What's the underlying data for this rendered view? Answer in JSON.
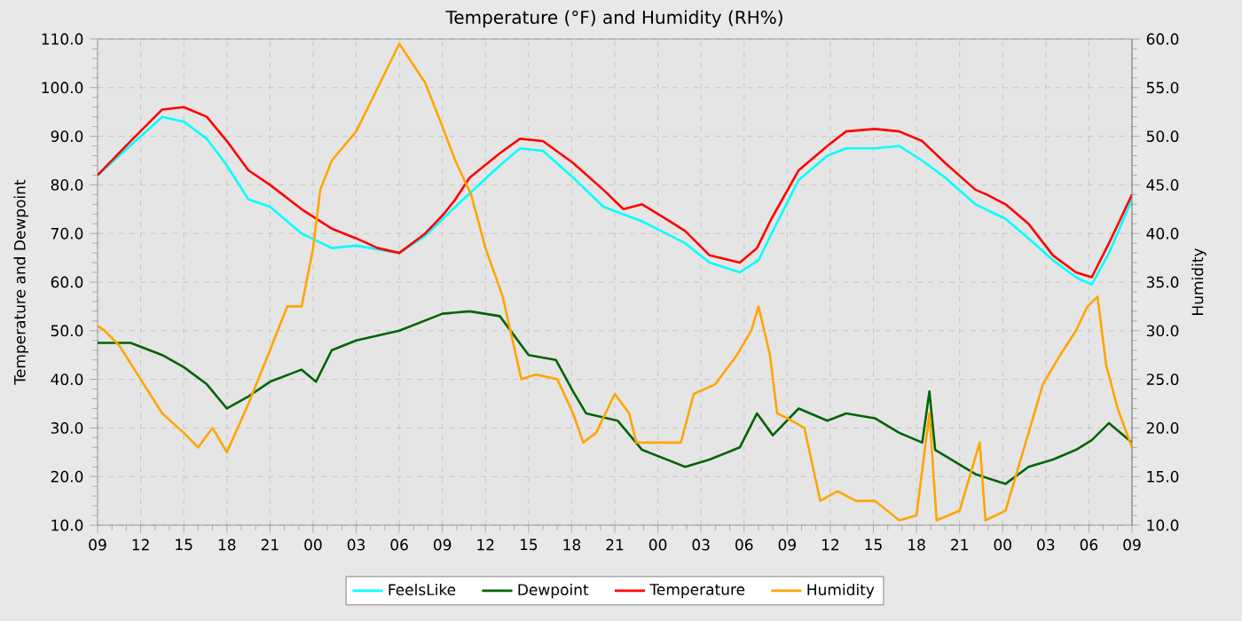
{
  "chart_data": {
    "type": "line",
    "title": "Temperature (°F) and Humidity (RH%)",
    "ylabel": "Temperature and Dewpoint",
    "y2label": "Humidity",
    "xlim": [
      9,
      81
    ],
    "xticks": [
      {
        "value": 9,
        "label": "09"
      },
      12,
      15,
      18,
      21,
      {
        "value": 24,
        "label": "00"
      },
      {
        "value": 27,
        "label": "03"
      },
      {
        "value": 30,
        "label": "06"
      },
      {
        "value": 33,
        "label": "09"
      },
      {
        "value": 36,
        "label": "12"
      },
      {
        "value": 39,
        "label": "15"
      },
      {
        "value": 42,
        "label": "18"
      },
      {
        "value": 45,
        "label": "21"
      },
      {
        "value": 48,
        "label": "00"
      },
      {
        "value": 51,
        "label": "03"
      },
      {
        "value": 54,
        "label": "06"
      },
      {
        "value": 57,
        "label": "09"
      },
      {
        "value": 60,
        "label": "12"
      },
      {
        "value": 63,
        "label": "15"
      },
      {
        "value": 66,
        "label": "18"
      },
      {
        "value": 69,
        "label": "21"
      },
      {
        "value": 72,
        "label": "00"
      },
      {
        "value": 75,
        "label": "03"
      },
      {
        "value": 78,
        "label": "06"
      },
      {
        "value": 81,
        "label": "09"
      }
    ],
    "ylim": [
      10,
      110
    ],
    "yticks": [
      {
        "value": 10,
        "label": "10.0"
      },
      {
        "value": 20,
        "label": "20.0"
      },
      {
        "value": 30,
        "label": "30.0"
      },
      {
        "value": 40,
        "label": "40.0"
      },
      {
        "value": 50,
        "label": "50.0"
      },
      {
        "value": 60,
        "label": "60.0"
      },
      {
        "value": 70,
        "label": "70.0"
      },
      {
        "value": 80,
        "label": "80.0"
      },
      {
        "value": 90,
        "label": "90.0"
      },
      {
        "value": 100,
        "label": "100.0"
      },
      {
        "value": 110,
        "label": "110.0"
      }
    ],
    "y2lim": [
      10,
      60
    ],
    "y2ticks": [
      {
        "value": 10,
        "label": "10.0"
      },
      {
        "value": 15,
        "label": "15.0"
      },
      {
        "value": 20,
        "label": "20.0"
      },
      {
        "value": 25,
        "label": "25.0"
      },
      {
        "value": 30,
        "label": "30.0"
      },
      {
        "value": 35,
        "label": "35.0"
      },
      {
        "value": 40,
        "label": "40.0"
      },
      {
        "value": 45,
        "label": "45.0"
      },
      {
        "value": 50,
        "label": "50.0"
      },
      {
        "value": 55,
        "label": "55.0"
      },
      {
        "value": 60,
        "label": "60.0"
      }
    ],
    "grid": true,
    "legend": "bottom",
    "marker": "none",
    "line_style": "solid",
    "series": [
      {
        "name": "FeelsLike",
        "color": "#00ffff",
        "x": [
          9,
          13.5,
          15,
          16.6,
          18,
          19.5,
          21,
          23.2,
          25.3,
          27,
          30,
          31.8,
          33.9,
          37,
          38.4,
          40,
          42.1,
          44.2,
          46.9,
          49.9,
          51.6,
          53.7,
          55,
          56,
          57.8,
          59.8,
          61.1,
          63.1,
          64.8,
          66.4,
          68,
          70.1,
          72.2,
          73.8,
          75.5,
          77.1,
          78.2,
          79.4,
          81
        ],
        "values": [
          82,
          94,
          93,
          89.5,
          84,
          77,
          75.5,
          70,
          67,
          67.5,
          66,
          69.5,
          75.5,
          84,
          87.5,
          87,
          81.5,
          75.5,
          72.5,
          68,
          64,
          62,
          64.5,
          70.5,
          81,
          86,
          87.5,
          87.5,
          88,
          85,
          81.5,
          76,
          73,
          69,
          64.5,
          61,
          59.5,
          66,
          77
        ]
      },
      {
        "name": "Dewpoint",
        "color": "#006400",
        "x": [
          9,
          11.3,
          13.5,
          15,
          16.6,
          18,
          19.5,
          21,
          23.2,
          24.2,
          25.3,
          27,
          30,
          33,
          34.9,
          37,
          39,
          40.9,
          42.1,
          43,
          45.2,
          46.9,
          49.9,
          51.6,
          53.7,
          54.9,
          56,
          57.8,
          59.8,
          61.1,
          63.1,
          64.8,
          66.4,
          66.9,
          67.3,
          70.1,
          72.2,
          73.8,
          75.5,
          77.1,
          78.2,
          79.4,
          81
        ],
        "values": [
          47.5,
          47.5,
          45,
          42.5,
          39,
          34,
          36.5,
          39.5,
          42,
          39.5,
          46,
          48,
          50,
          53.5,
          54,
          53,
          45,
          44,
          37.5,
          33,
          31.5,
          25.5,
          22,
          23.5,
          26,
          33,
          28.5,
          34,
          31.5,
          33,
          32,
          29,
          27,
          37.5,
          25.5,
          20.5,
          18.5,
          22,
          23.5,
          25.5,
          27.5,
          31,
          27
        ]
      },
      {
        "name": "Temperature",
        "color": "#ff0000",
        "x": [
          9,
          11.3,
          13.5,
          15,
          16.6,
          18,
          19.5,
          21,
          23.2,
          25.3,
          27,
          28.5,
          30,
          31.8,
          33.1,
          33.9,
          34.9,
          37,
          38.4,
          40,
          42.1,
          44.2,
          45.6,
          46.9,
          48.3,
          49.9,
          51.6,
          53.7,
          54.9,
          55.9,
          57.8,
          59.8,
          61.1,
          63.1,
          64.8,
          66.4,
          68,
          70.1,
          70.9,
          72.2,
          73.8,
          75.5,
          77.1,
          78.2,
          79.4,
          81
        ],
        "values": [
          82,
          89,
          95.5,
          96,
          94,
          89,
          83,
          80,
          75,
          71,
          69,
          67,
          66,
          70,
          74,
          77,
          81.5,
          86.5,
          89.5,
          89,
          84.5,
          79,
          75,
          76,
          73.5,
          70.5,
          65.5,
          64,
          67,
          73,
          83,
          88,
          91,
          91.5,
          91,
          89,
          84.5,
          79,
          78,
          76,
          72,
          65.5,
          62,
          61,
          68,
          78
        ]
      },
      {
        "name": "Humidity",
        "color": "#ffa500",
        "axis": "y2",
        "x": [
          9,
          9.5,
          10.5,
          12,
          13.5,
          15,
          16,
          17,
          18,
          19.5,
          21,
          22.2,
          23.2,
          24,
          24.5,
          25.3,
          27,
          28.5,
          30,
          31.8,
          33,
          33.9,
          35,
          36,
          37.2,
          38.5,
          39.5,
          41,
          42.1,
          42.8,
          43.7,
          45,
          46,
          46.5,
          48.3,
          49.6,
          50.5,
          52,
          53.5,
          54.5,
          55,
          55.8,
          56.3,
          57,
          58.2,
          59.3,
          60.5,
          61.8,
          63.1,
          64.8,
          66,
          66.9,
          67.4,
          69,
          70.4,
          70.8,
          72.2,
          73.5,
          74.8,
          76,
          77.1,
          77.9,
          78.6,
          79.2,
          80,
          81
        ],
        "values": [
          30.5,
          30,
          28.5,
          25,
          21.5,
          19.5,
          18,
          20,
          17.5,
          22.5,
          28,
          32.5,
          32.5,
          38.5,
          44.5,
          47.5,
          50.5,
          55,
          59.5,
          55.5,
          51,
          47.5,
          44,
          38.5,
          33.5,
          25,
          25.5,
          25,
          21.5,
          18.5,
          19.5,
          23.5,
          21.5,
          18.5,
          18.5,
          18.5,
          23.5,
          24.5,
          27.5,
          30,
          32.5,
          27.5,
          21.5,
          21,
          20,
          12.5,
          13.5,
          12.5,
          12.5,
          10.5,
          11,
          21.5,
          10.5,
          11.5,
          18.5,
          10.5,
          11.5,
          18,
          24.5,
          27.5,
          30,
          32.5,
          33.5,
          26.5,
          22,
          18
        ]
      }
    ]
  }
}
